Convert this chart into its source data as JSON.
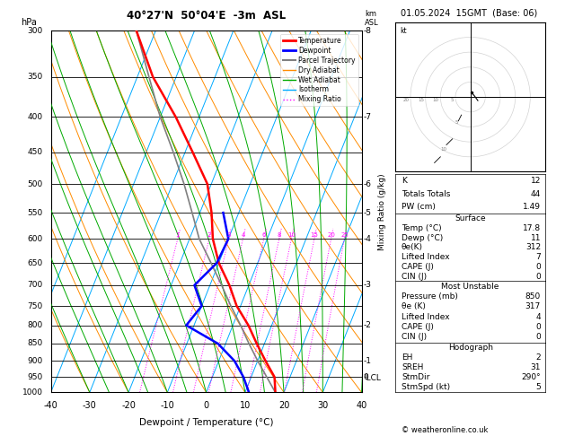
{
  "title": "40°27'N  50°04'E  -3m  ASL",
  "date_str": "01.05.2024  15GMT  (Base: 06)",
  "xlabel": "Dewpoint / Temperature (°C)",
  "ylabel_left": "hPa",
  "ylabel_right_main": "Mixing Ratio (g/kg)",
  "pressure_levels": [
    300,
    350,
    400,
    450,
    500,
    550,
    600,
    650,
    700,
    750,
    800,
    850,
    900,
    950,
    1000
  ],
  "temp_profile_p": [
    1000,
    950,
    900,
    850,
    800,
    750,
    700,
    650,
    600,
    550,
    500,
    450,
    400,
    350,
    300
  ],
  "temp_profile_t": [
    17.8,
    16.0,
    12.0,
    8.0,
    4.0,
    -1.0,
    -5.0,
    -10.0,
    -14.0,
    -17.0,
    -21.0,
    -28.0,
    -36.0,
    -46.0,
    -55.0
  ],
  "dewp_profile_p": [
    1000,
    950,
    900,
    850,
    800,
    750,
    700,
    650,
    600,
    550
  ],
  "dewp_profile_t": [
    11.0,
    8.0,
    4.0,
    -2.0,
    -12.0,
    -10.0,
    -14.0,
    -10.5,
    -10.0,
    -14.0
  ],
  "parcel_profile_p": [
    1000,
    950,
    900,
    850,
    800,
    750,
    700,
    650,
    600,
    550,
    500,
    450,
    400,
    350,
    300
  ],
  "parcel_profile_t": [
    17.8,
    14.0,
    10.0,
    6.0,
    2.0,
    -2.5,
    -7.0,
    -12.0,
    -17.5,
    -22.0,
    -27.0,
    -33.0,
    -40.0,
    -47.0,
    -55.0
  ],
  "mixing_ratios": [
    1,
    2,
    3,
    4,
    6,
    8,
    10,
    15,
    20,
    25
  ],
  "lcl_pressure": 955,
  "colors": {
    "temperature": "#ff0000",
    "dewpoint": "#0000ff",
    "parcel": "#808080",
    "dry_adiabat": "#ff8c00",
    "wet_adiabat": "#00aa00",
    "isotherm": "#00aaff",
    "mixing_ratio": "#ff00ff",
    "background": "#ffffff",
    "grid": "#000000"
  },
  "legend_entries": [
    {
      "label": "Temperature",
      "color": "#ff0000",
      "lw": 2,
      "ls": "-"
    },
    {
      "label": "Dewpoint",
      "color": "#0000ff",
      "lw": 2,
      "ls": "-"
    },
    {
      "label": "Parcel Trajectory",
      "color": "#808080",
      "lw": 1.5,
      "ls": "-"
    },
    {
      "label": "Dry Adiabat",
      "color": "#ff8c00",
      "lw": 1,
      "ls": "-"
    },
    {
      "label": "Wet Adiabat",
      "color": "#00aa00",
      "lw": 1,
      "ls": "-"
    },
    {
      "label": "Isotherm",
      "color": "#00aaff",
      "lw": 1,
      "ls": "-"
    },
    {
      "label": "Mixing Ratio",
      "color": "#ff00ff",
      "lw": 1,
      "ls": ":"
    }
  ],
  "km_ticks": {
    "300": 8,
    "400": 7,
    "500": 6,
    "550": 5,
    "600": 4,
    "700": 3,
    "800": 2,
    "900": 1,
    "950": 0
  },
  "info_boxes": {
    "indices": {
      "K": "12",
      "Totals Totals": "44",
      "PW (cm)": "1.49"
    },
    "surface_title": "Surface",
    "surface": {
      "Temp (°C)": "17.8",
      "Dewp (°C)": "11",
      "θe(K)": "312",
      "Lifted Index": "7",
      "CAPE (J)": "0",
      "CIN (J)": "0"
    },
    "mu_title": "Most Unstable",
    "most_unstable": {
      "Pressure (mb)": "850",
      "θe (K)": "317",
      "Lifted Index": "4",
      "CAPE (J)": "0",
      "CIN (J)": "0"
    },
    "hodo_title": "Hodograph",
    "hodograph": {
      "EH": "2",
      "SREH": "31",
      "StmDir": "290°",
      "StmSpd (kt)": "5"
    }
  },
  "copyright": "© weatheronline.co.uk"
}
